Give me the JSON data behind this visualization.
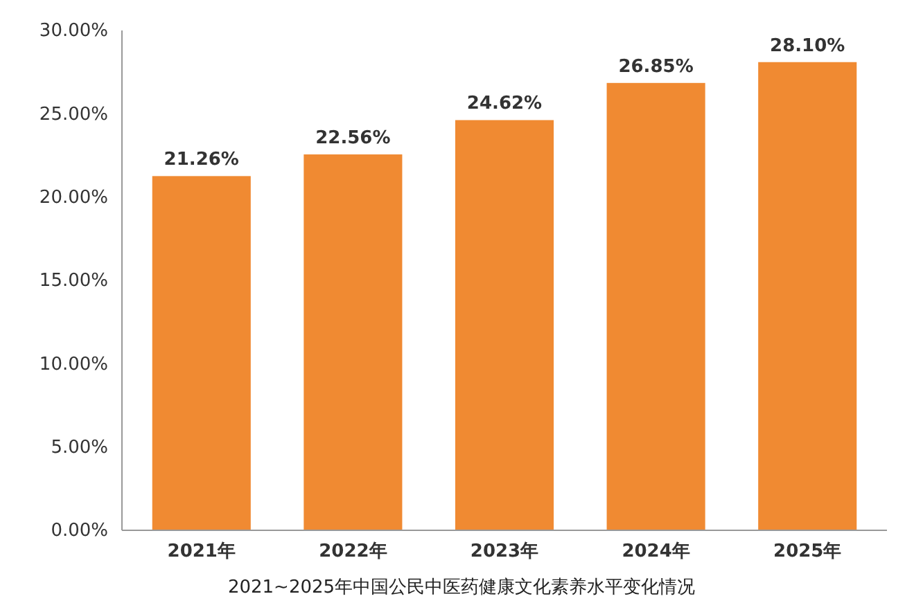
{
  "chart_data": {
    "type": "bar",
    "title": "2021~2025年中国公民中医药健康文化素养水平变化情况",
    "categories": [
      "2021年",
      "2022年",
      "2023年",
      "2024年",
      "2025年"
    ],
    "values": [
      21.26,
      22.56,
      24.62,
      26.85,
      28.1
    ],
    "value_labels": [
      "21.26%",
      "22.56%",
      "24.62%",
      "26.85%",
      "28.10%"
    ],
    "color": "#f08a32",
    "ylim": [
      0,
      30
    ],
    "yticks": [
      {
        "value": 0,
        "label": "0.00%"
      },
      {
        "value": 5,
        "label": "5.00%"
      },
      {
        "value": 10,
        "label": "10.00%"
      },
      {
        "value": 15,
        "label": "15.00%"
      },
      {
        "value": 20,
        "label": "20.00%"
      },
      {
        "value": 25,
        "label": "25.00%"
      },
      {
        "value": 30,
        "label": "30.00%"
      }
    ],
    "grid": false
  }
}
